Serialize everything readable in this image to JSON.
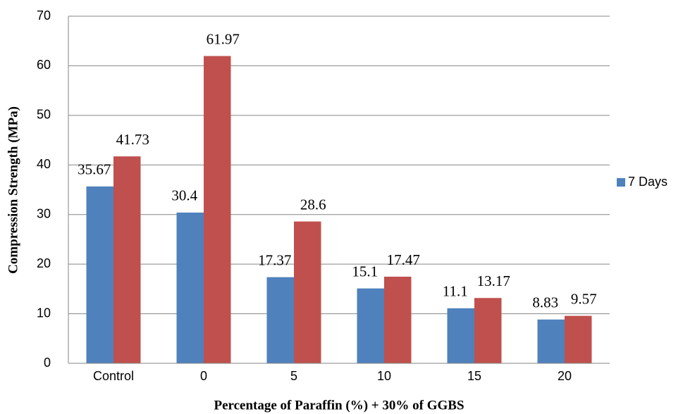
{
  "chart_data": {
    "type": "bar",
    "x_label": "Percentage of Paraffin (%) + 30% of GGBS",
    "y_label": "Compression Strength (MPa)",
    "categories": [
      "Control",
      "0",
      "5",
      "10",
      "15",
      "20"
    ],
    "series": [
      {
        "name": "7 Days",
        "color": "#4f81bd",
        "values": [
          35.67,
          30.4,
          17.37,
          15.1,
          11.1,
          8.83
        ]
      },
      {
        "color": "#c0504d",
        "values": [
          41.73,
          61.97,
          28.6,
          17.47,
          13.17,
          9.57
        ]
      }
    ],
    "ylim": [
      0,
      70
    ],
    "yticks": [
      0,
      10,
      20,
      30,
      40,
      50,
      60,
      70
    ],
    "grid": true,
    "legend": "right"
  }
}
